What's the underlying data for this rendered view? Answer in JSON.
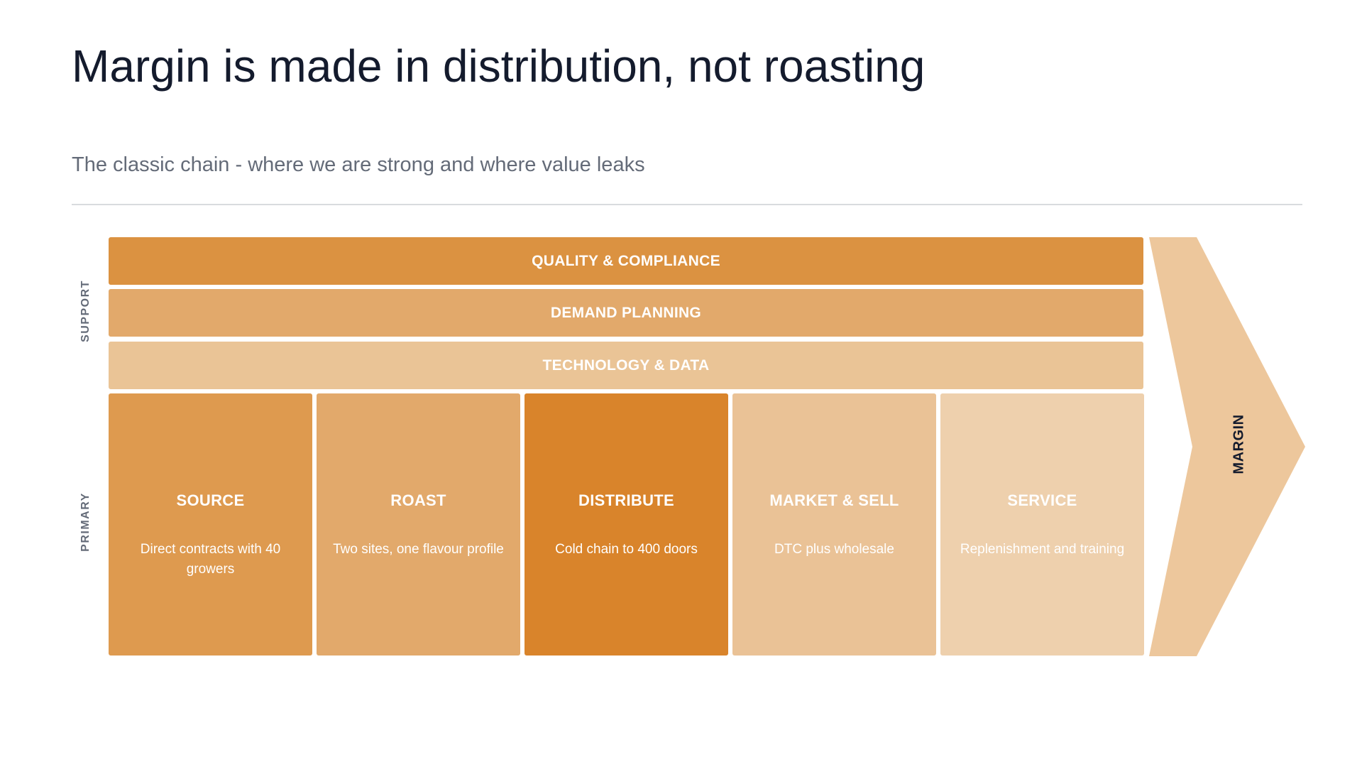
{
  "title": "Margin is made in distribution, not roasting",
  "subtitle": "The classic chain - where we are strong and where value leaks",
  "labels": {
    "support": "SUPPORT",
    "primary": "PRIMARY"
  },
  "support_activities": [
    {
      "label": "QUALITY & COMPLIANCE",
      "color": "#db9241"
    },
    {
      "label": "DEMAND PLANNING",
      "color": "#e2a96b"
    },
    {
      "label": "TECHNOLOGY & DATA",
      "color": "#eac496"
    }
  ],
  "primary_activities": [
    {
      "title": "SOURCE",
      "description": "Direct contracts with 40 growers",
      "color": "#de9a4f"
    },
    {
      "title": "ROAST",
      "description": "Two sites, one flavour profile",
      "color": "#e2a96b"
    },
    {
      "title": "DISTRIBUTE",
      "description": "Cold chain to 400 doors",
      "color": "#d9842b"
    },
    {
      "title": "MARKET & SELL",
      "description": "DTC plus wholesale",
      "color": "#eac296"
    },
    {
      "title": "SERVICE",
      "description": "Replenishment and training",
      "color": "#eed0ad"
    }
  ],
  "margin": {
    "label": "MARGIN",
    "color": "#edc79c"
  }
}
